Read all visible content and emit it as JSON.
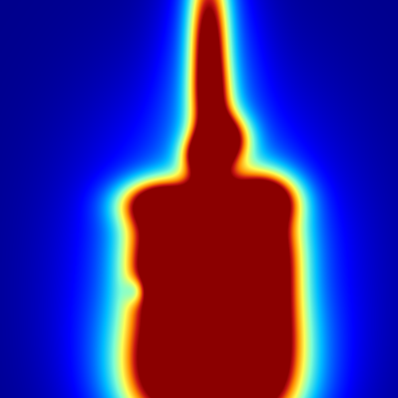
{
  "image": {
    "kind": "attention heatmap overlay",
    "colormap": "jet",
    "background_color": "#00008a",
    "colormap_stops": [
      "#00008a",
      "#0000ff",
      "#00bfff",
      "#7fffd4",
      "#ffff55",
      "#ff8c00",
      "#c81414",
      "#8b0000"
    ]
  }
}
